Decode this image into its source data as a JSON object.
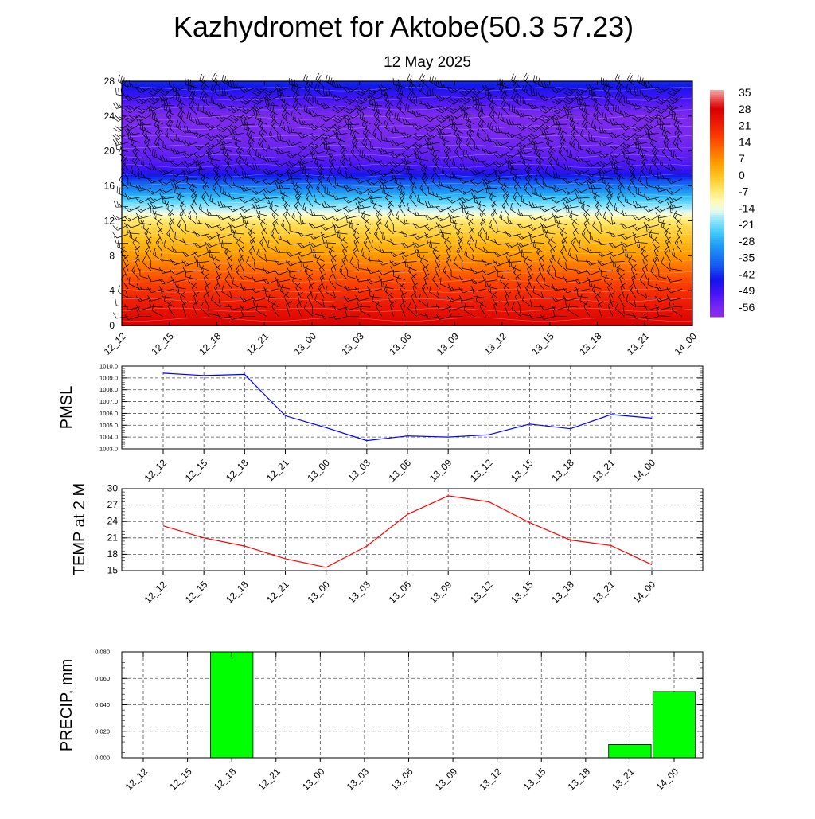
{
  "header": {
    "title": "Kazhydromet for Aktobe(50.3 57.23)",
    "subtitle": "12 May 2025"
  },
  "time_labels": [
    "12_12",
    "12_15",
    "12_18",
    "12_21",
    "13_00",
    "13_03",
    "13_06",
    "13_09",
    "13_12",
    "13_15",
    "13_18",
    "13_21",
    "14_00"
  ],
  "colors": {
    "pmsl_line": "#0000ff",
    "temp_line": "#ff0000",
    "precip_bar": "#00ff00"
  },
  "chart_data": [
    {
      "type": "heatmap",
      "name": "cross-section",
      "x": [
        "12_12",
        "12_15",
        "12_18",
        "12_21",
        "13_00",
        "13_03",
        "13_06",
        "13_09",
        "13_12",
        "13_15",
        "13_18",
        "13_21",
        "14_00"
      ],
      "yticks": [
        "0",
        "4",
        "8",
        "12",
        "16",
        "20",
        "24",
        "28"
      ],
      "ylim": [
        0,
        28
      ],
      "profile": {
        "levels": [
          0,
          2,
          4,
          6,
          8,
          10,
          12,
          12.5,
          13,
          14,
          15,
          16,
          17,
          18,
          19,
          20,
          22,
          24,
          26,
          28
        ],
        "values": [
          30,
          25,
          20,
          14,
          7,
          1,
          -5,
          -10,
          -14,
          -20,
          -27,
          -34,
          -42,
          -49,
          -52,
          -54,
          -56,
          -57,
          -50,
          -42
        ]
      },
      "colorbar": {
        "labels": [
          "35",
          "28",
          "21",
          "14",
          "7",
          "0",
          "-7",
          "-14",
          "-21",
          "-28",
          "-35",
          "-42",
          "-49",
          "-56"
        ],
        "range": [
          -60,
          38
        ]
      },
      "wind_barbs": true
    },
    {
      "type": "line",
      "name": "pmsl",
      "ylabel": "PMSL",
      "categories": [
        "12_12",
        "12_15",
        "12_18",
        "12_21",
        "13_00",
        "13_03",
        "13_06",
        "13_09",
        "13_12",
        "13_15",
        "13_18",
        "13_21",
        "14_00"
      ],
      "values": [
        1009.4,
        1009.2,
        1009.3,
        1005.8,
        1004.8,
        1003.7,
        1004.1,
        1004.0,
        1004.2,
        1005.1,
        1004.7,
        1005.9,
        1005.6
      ],
      "ylim": [
        1003.0,
        1010.0
      ],
      "yticks": [
        "1003.0",
        "1004.0",
        "1005.0",
        "1006.0",
        "1007.0",
        "1008.0",
        "1009.0",
        "1010.0"
      ],
      "grid": true
    },
    {
      "type": "line",
      "name": "temp",
      "ylabel": "TEMP at 2 M",
      "categories": [
        "12_12",
        "12_15",
        "12_18",
        "12_21",
        "13_00",
        "13_03",
        "13_06",
        "13_09",
        "13_12",
        "13_15",
        "13_18",
        "13_21",
        "14_00"
      ],
      "values": [
        23.2,
        21.0,
        19.5,
        17.2,
        15.6,
        19.5,
        25.3,
        28.7,
        27.6,
        23.8,
        20.6,
        19.6,
        16.1
      ],
      "ylim": [
        15,
        30
      ],
      "yticks": [
        "15",
        "18",
        "21",
        "24",
        "27",
        "30"
      ],
      "grid": true
    },
    {
      "type": "bar",
      "name": "precip",
      "ylabel": "PRECIP, mm",
      "categories": [
        "12_12",
        "12_15",
        "12_18",
        "12_21",
        "13_00",
        "13_03",
        "13_06",
        "13_09",
        "13_12",
        "13_15",
        "13_18",
        "13_21",
        "14_00"
      ],
      "values": [
        0,
        0,
        0.08,
        0,
        0,
        0,
        0,
        0,
        0,
        0,
        0,
        0.01,
        0.05
      ],
      "ylim": [
        0,
        0.08
      ],
      "yticks": [
        "0.000",
        "0.020",
        "0.040",
        "0.060",
        "0.080"
      ],
      "grid": true
    }
  ]
}
